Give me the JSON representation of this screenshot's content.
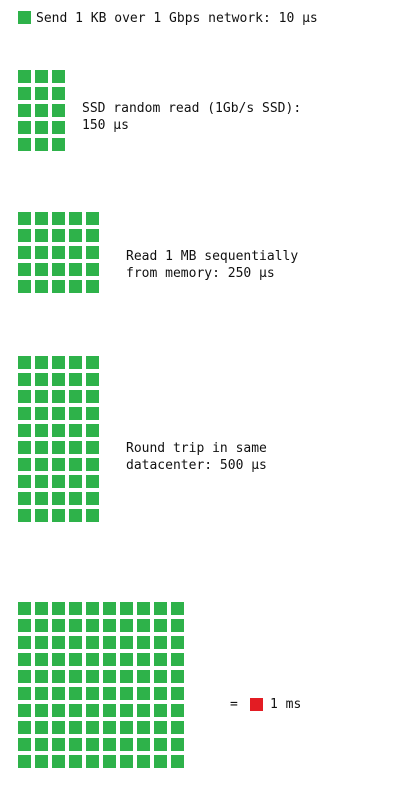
{
  "colors": {
    "square": "#2eb24a",
    "unit": "#e31c23",
    "text": "#111111",
    "background": "#ffffff"
  },
  "rows": [
    {
      "id": "network",
      "squares": 1,
      "label_lines": [
        "Send 1 KB over 1 Gbps network: 10 µs"
      ]
    },
    {
      "id": "ssd",
      "squares": 15,
      "label_lines": [
        "SSD random read (1Gb/s SSD):",
        "150 µs"
      ]
    },
    {
      "id": "memory",
      "squares": 25,
      "label_lines": [
        "Read 1 MB sequentially",
        "from memory: 250 µs"
      ]
    },
    {
      "id": "datacenter",
      "squares": 50,
      "label_lines": [
        "Round trip in same",
        "datacenter: 500 µs"
      ]
    },
    {
      "id": "millisecond",
      "squares": 100,
      "label_lines": [],
      "equals_text": "=",
      "unit_text": "1 ms"
    }
  ]
}
